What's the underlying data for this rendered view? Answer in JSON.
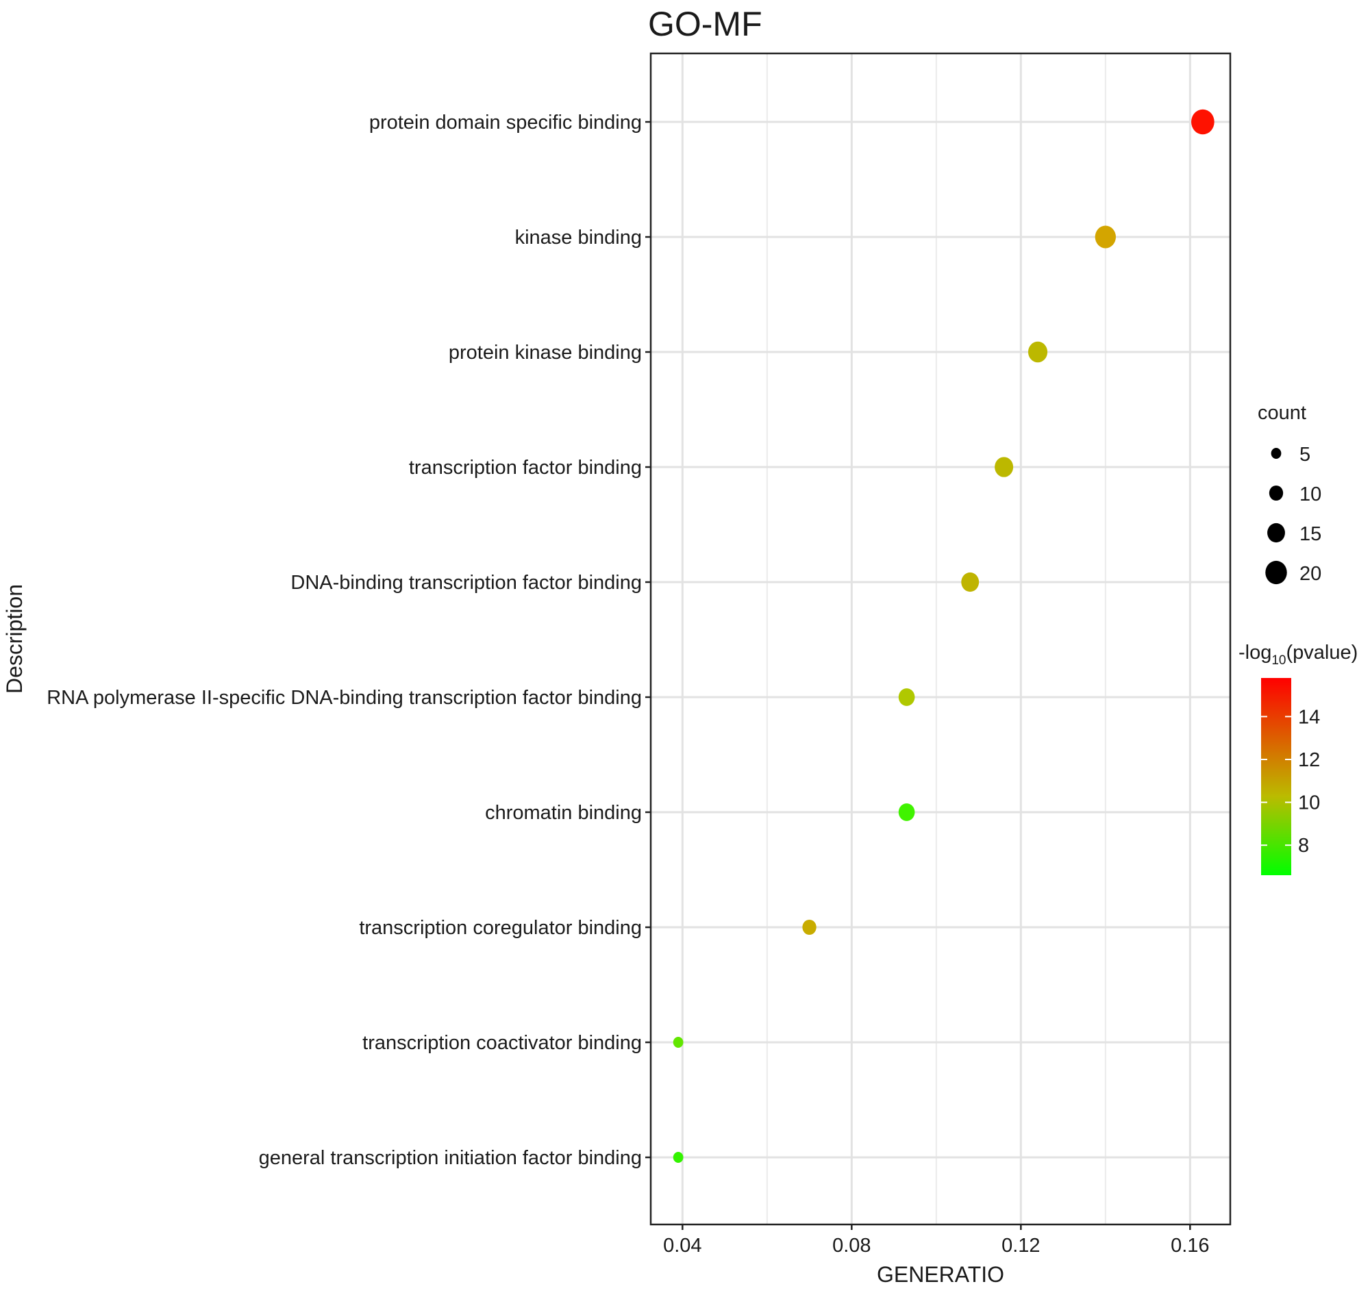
{
  "chart_data": {
    "type": "scatter",
    "title": "GO-MF",
    "xlabel": "GENERATIO",
    "ylabel": "Description",
    "xlim": [
      0.0325,
      0.1695
    ],
    "xticks": [
      0.04,
      0.08,
      0.12,
      0.16
    ],
    "xtick_labels": [
      "0.04",
      "0.08",
      "0.12",
      "0.16"
    ],
    "grid": true,
    "legend_position": "right",
    "points": [
      {
        "term": "protein domain specific binding",
        "gene_ratio": 0.163,
        "count": 22,
        "neg_log10_p": 15.6,
        "color": "#fe1200"
      },
      {
        "term": "kinase binding",
        "gene_ratio": 0.14,
        "count": 19,
        "neg_log10_p": 11.4,
        "color": "#d3a500"
      },
      {
        "term": "protein kinase binding",
        "gene_ratio": 0.124,
        "count": 17,
        "neg_log10_p": 9.7,
        "color": "#bcb800"
      },
      {
        "term": "transcription factor binding",
        "gene_ratio": 0.116,
        "count": 16,
        "neg_log10_p": 9.7,
        "color": "#bcb800"
      },
      {
        "term": "DNA-binding transcription factor binding",
        "gene_ratio": 0.108,
        "count": 15,
        "neg_log10_p": 10.0,
        "color": "#bfb400"
      },
      {
        "term": "RNA polymerase II-specific DNA-binding transcription factor binding",
        "gene_ratio": 0.093,
        "count": 13,
        "neg_log10_p": 8.9,
        "color": "#b0c800"
      },
      {
        "term": "chromatin binding",
        "gene_ratio": 0.093,
        "count": 13,
        "neg_log10_p": 7.0,
        "color": "#40f300"
      },
      {
        "term": "transcription coregulator binding",
        "gene_ratio": 0.07,
        "count": 10,
        "neg_log10_p": 10.8,
        "color": "#c8ac00"
      },
      {
        "term": "transcription coactivator binding",
        "gene_ratio": 0.039,
        "count": 5,
        "neg_log10_p": 7.6,
        "color": "#62e600"
      },
      {
        "term": "general transcription initiation factor binding",
        "gene_ratio": 0.039,
        "count": 5,
        "neg_log10_p": 7.0,
        "color": "#33f300"
      }
    ],
    "size_legend": {
      "title": "count",
      "values": [
        5,
        10,
        15,
        20
      ],
      "labels": [
        "5",
        "10",
        "15",
        "20"
      ]
    },
    "color_legend": {
      "title_prefix": "-log",
      "title_sub": "10",
      "title_suffix": "(pvalue)",
      "range": [
        6.6,
        15.8
      ],
      "ticks": [
        8,
        10,
        12,
        14
      ],
      "tick_labels": [
        "8",
        "10",
        "12",
        "14"
      ],
      "low_color": "#00ff00",
      "mid_color": "#bbbb00",
      "high_color": "#ff0000"
    }
  }
}
